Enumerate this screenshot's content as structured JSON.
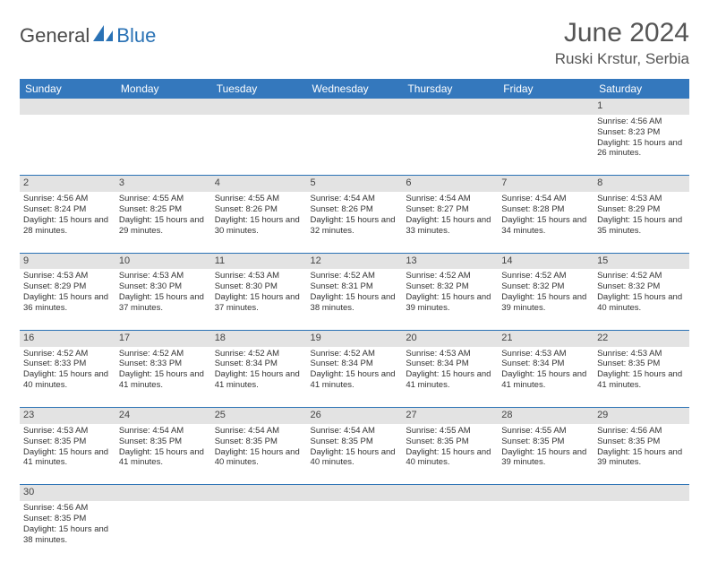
{
  "logo": {
    "part1": "General",
    "part2": "Blue"
  },
  "title": "June 2024",
  "location": "Ruski Krstur, Serbia",
  "colors": {
    "header_bg": "#3478bd",
    "header_text": "#ffffff",
    "daynum_bg": "#e3e3e3",
    "rule": "#2a72b5",
    "text": "#333333",
    "title_text": "#555555"
  },
  "dayHeaders": [
    "Sunday",
    "Monday",
    "Tuesday",
    "Wednesday",
    "Thursday",
    "Friday",
    "Saturday"
  ],
  "weeks": [
    [
      null,
      null,
      null,
      null,
      null,
      null,
      {
        "n": "1",
        "sr": "4:56 AM",
        "ss": "8:23 PM",
        "dl": "15 hours and 26 minutes."
      }
    ],
    [
      {
        "n": "2",
        "sr": "4:56 AM",
        "ss": "8:24 PM",
        "dl": "15 hours and 28 minutes."
      },
      {
        "n": "3",
        "sr": "4:55 AM",
        "ss": "8:25 PM",
        "dl": "15 hours and 29 minutes."
      },
      {
        "n": "4",
        "sr": "4:55 AM",
        "ss": "8:26 PM",
        "dl": "15 hours and 30 minutes."
      },
      {
        "n": "5",
        "sr": "4:54 AM",
        "ss": "8:26 PM",
        "dl": "15 hours and 32 minutes."
      },
      {
        "n": "6",
        "sr": "4:54 AM",
        "ss": "8:27 PM",
        "dl": "15 hours and 33 minutes."
      },
      {
        "n": "7",
        "sr": "4:54 AM",
        "ss": "8:28 PM",
        "dl": "15 hours and 34 minutes."
      },
      {
        "n": "8",
        "sr": "4:53 AM",
        "ss": "8:29 PM",
        "dl": "15 hours and 35 minutes."
      }
    ],
    [
      {
        "n": "9",
        "sr": "4:53 AM",
        "ss": "8:29 PM",
        "dl": "15 hours and 36 minutes."
      },
      {
        "n": "10",
        "sr": "4:53 AM",
        "ss": "8:30 PM",
        "dl": "15 hours and 37 minutes."
      },
      {
        "n": "11",
        "sr": "4:53 AM",
        "ss": "8:30 PM",
        "dl": "15 hours and 37 minutes."
      },
      {
        "n": "12",
        "sr": "4:52 AM",
        "ss": "8:31 PM",
        "dl": "15 hours and 38 minutes."
      },
      {
        "n": "13",
        "sr": "4:52 AM",
        "ss": "8:32 PM",
        "dl": "15 hours and 39 minutes."
      },
      {
        "n": "14",
        "sr": "4:52 AM",
        "ss": "8:32 PM",
        "dl": "15 hours and 39 minutes."
      },
      {
        "n": "15",
        "sr": "4:52 AM",
        "ss": "8:32 PM",
        "dl": "15 hours and 40 minutes."
      }
    ],
    [
      {
        "n": "16",
        "sr": "4:52 AM",
        "ss": "8:33 PM",
        "dl": "15 hours and 40 minutes."
      },
      {
        "n": "17",
        "sr": "4:52 AM",
        "ss": "8:33 PM",
        "dl": "15 hours and 41 minutes."
      },
      {
        "n": "18",
        "sr": "4:52 AM",
        "ss": "8:34 PM",
        "dl": "15 hours and 41 minutes."
      },
      {
        "n": "19",
        "sr": "4:52 AM",
        "ss": "8:34 PM",
        "dl": "15 hours and 41 minutes."
      },
      {
        "n": "20",
        "sr": "4:53 AM",
        "ss": "8:34 PM",
        "dl": "15 hours and 41 minutes."
      },
      {
        "n": "21",
        "sr": "4:53 AM",
        "ss": "8:34 PM",
        "dl": "15 hours and 41 minutes."
      },
      {
        "n": "22",
        "sr": "4:53 AM",
        "ss": "8:35 PM",
        "dl": "15 hours and 41 minutes."
      }
    ],
    [
      {
        "n": "23",
        "sr": "4:53 AM",
        "ss": "8:35 PM",
        "dl": "15 hours and 41 minutes."
      },
      {
        "n": "24",
        "sr": "4:54 AM",
        "ss": "8:35 PM",
        "dl": "15 hours and 41 minutes."
      },
      {
        "n": "25",
        "sr": "4:54 AM",
        "ss": "8:35 PM",
        "dl": "15 hours and 40 minutes."
      },
      {
        "n": "26",
        "sr": "4:54 AM",
        "ss": "8:35 PM",
        "dl": "15 hours and 40 minutes."
      },
      {
        "n": "27",
        "sr": "4:55 AM",
        "ss": "8:35 PM",
        "dl": "15 hours and 40 minutes."
      },
      {
        "n": "28",
        "sr": "4:55 AM",
        "ss": "8:35 PM",
        "dl": "15 hours and 39 minutes."
      },
      {
        "n": "29",
        "sr": "4:56 AM",
        "ss": "8:35 PM",
        "dl": "15 hours and 39 minutes."
      }
    ],
    [
      {
        "n": "30",
        "sr": "4:56 AM",
        "ss": "8:35 PM",
        "dl": "15 hours and 38 minutes."
      },
      null,
      null,
      null,
      null,
      null,
      null
    ]
  ],
  "labels": {
    "sunrise": "Sunrise:",
    "sunset": "Sunset:",
    "daylight": "Daylight:"
  }
}
